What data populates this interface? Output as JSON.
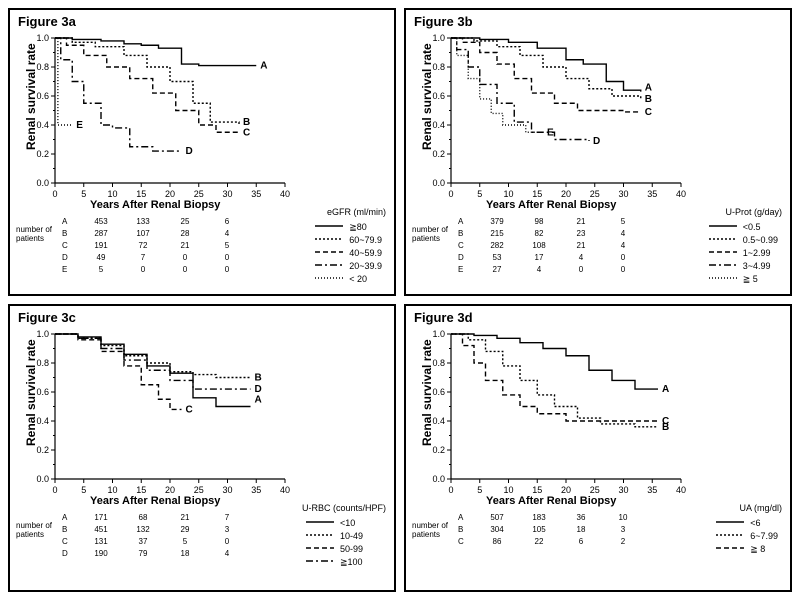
{
  "global": {
    "ylabel": "Renal survival rate",
    "xlabel": "Years After  Renal Biopsy",
    "np_label": "number of\npatients",
    "line_color": "#000000",
    "bg_color": "#ffffff",
    "axis_font_size": 9,
    "label_font_size": 12,
    "ylim": [
      0,
      1.0
    ],
    "xlim": [
      0,
      40
    ],
    "ytick_step": 0.2,
    "xtick_step": 5
  },
  "panels": [
    {
      "title": "Figure 3a",
      "legend_title": "eGFR (ml/min)",
      "series": [
        {
          "id": "A",
          "label": "≧80",
          "dash": "0",
          "pts": [
            [
              0,
              1.0
            ],
            [
              3,
              0.99
            ],
            [
              8,
              0.98
            ],
            [
              12,
              0.96
            ],
            [
              15,
              0.95
            ],
            [
              18,
              0.93
            ],
            [
              22,
              0.82
            ],
            [
              25,
              0.81
            ],
            [
              35,
              0.81
            ]
          ],
          "end_label_y": 0.81
        },
        {
          "id": "B",
          "label": "60~79.9",
          "dash": "2,2",
          "pts": [
            [
              0,
              1.0
            ],
            [
              3,
              0.97
            ],
            [
              7,
              0.94
            ],
            [
              12,
              0.88
            ],
            [
              16,
              0.8
            ],
            [
              20,
              0.7
            ],
            [
              24,
              0.55
            ],
            [
              27,
              0.42
            ],
            [
              32,
              0.4
            ]
          ],
          "end_label_y": 0.42
        },
        {
          "id": "C",
          "label": "40~59.9",
          "dash": "5,3",
          "pts": [
            [
              0,
              1.0
            ],
            [
              2,
              0.95
            ],
            [
              5,
              0.88
            ],
            [
              9,
              0.8
            ],
            [
              13,
              0.72
            ],
            [
              17,
              0.62
            ],
            [
              21,
              0.5
            ],
            [
              25,
              0.4
            ],
            [
              28,
              0.35
            ],
            [
              32,
              0.35
            ]
          ],
          "end_label_y": 0.35
        },
        {
          "id": "D",
          "label": "20~39.9",
          "dash": "7,3,2,3",
          "pts": [
            [
              0,
              1.0
            ],
            [
              1,
              0.85
            ],
            [
              3,
              0.7
            ],
            [
              5,
              0.55
            ],
            [
              8,
              0.4
            ],
            [
              10,
              0.38
            ],
            [
              13,
              0.25
            ],
            [
              17,
              0.22
            ],
            [
              22,
              0.22
            ]
          ],
          "end_label_y": 0.22
        },
        {
          "id": "E",
          "label": "< 20",
          "dash": "1,2",
          "pts": [
            [
              0,
              1.0
            ],
            [
              0.5,
              0.4
            ],
            [
              1,
              0.4
            ],
            [
              3,
              0.4
            ]
          ],
          "end_label_y": 0.4,
          "end_label_x": 3
        }
      ],
      "np_cols": [
        0,
        10,
        20,
        30
      ],
      "np_rows": [
        [
          "A",
          453,
          133,
          25,
          6
        ],
        [
          "B",
          287,
          107,
          28,
          4
        ],
        [
          "C",
          191,
          72,
          21,
          5
        ],
        [
          "D",
          49,
          7,
          0,
          0
        ],
        [
          "E",
          5,
          0,
          0,
          0
        ]
      ]
    },
    {
      "title": "Figure 3b",
      "legend_title": "U-Prot (g/day)",
      "series": [
        {
          "id": "A",
          "label": "<0.5",
          "dash": "0",
          "pts": [
            [
              0,
              1.0
            ],
            [
              5,
              0.99
            ],
            [
              10,
              0.97
            ],
            [
              15,
              0.93
            ],
            [
              20,
              0.85
            ],
            [
              23,
              0.82
            ],
            [
              27,
              0.7
            ],
            [
              30,
              0.64
            ],
            [
              33,
              0.63
            ]
          ],
          "end_label_y": 0.66
        },
        {
          "id": "B",
          "label": "0.5~0.99",
          "dash": "2,2",
          "pts": [
            [
              0,
              1.0
            ],
            [
              4,
              0.98
            ],
            [
              8,
              0.94
            ],
            [
              12,
              0.88
            ],
            [
              16,
              0.8
            ],
            [
              20,
              0.72
            ],
            [
              24,
              0.65
            ],
            [
              28,
              0.6
            ],
            [
              33,
              0.58
            ]
          ],
          "end_label_y": 0.58
        },
        {
          "id": "C",
          "label": "1~2.99",
          "dash": "5,3",
          "pts": [
            [
              0,
              1.0
            ],
            [
              2,
              0.97
            ],
            [
              5,
              0.9
            ],
            [
              8,
              0.82
            ],
            [
              11,
              0.72
            ],
            [
              14,
              0.62
            ],
            [
              18,
              0.55
            ],
            [
              22,
              0.5
            ],
            [
              30,
              0.49
            ],
            [
              33,
              0.49
            ]
          ],
          "end_label_y": 0.49
        },
        {
          "id": "D",
          "label": "3~4.99",
          "dash": "7,3,2,3",
          "pts": [
            [
              0,
              1.0
            ],
            [
              1,
              0.92
            ],
            [
              3,
              0.8
            ],
            [
              5,
              0.68
            ],
            [
              8,
              0.55
            ],
            [
              11,
              0.42
            ],
            [
              14,
              0.35
            ],
            [
              18,
              0.3
            ],
            [
              24,
              0.29
            ]
          ],
          "end_label_y": 0.29
        },
        {
          "id": "E",
          "label": "≧ 5",
          "dash": "1,2",
          "pts": [
            [
              0,
              1.0
            ],
            [
              1,
              0.88
            ],
            [
              3,
              0.72
            ],
            [
              5,
              0.58
            ],
            [
              7,
              0.48
            ],
            [
              9,
              0.4
            ],
            [
              13,
              0.35
            ],
            [
              16,
              0.35
            ]
          ],
          "end_label_y": 0.35,
          "end_label_x": 16
        }
      ],
      "np_cols": [
        0,
        10,
        20,
        30
      ],
      "np_rows": [
        [
          "A",
          379,
          98,
          21,
          5
        ],
        [
          "B",
          215,
          82,
          23,
          4
        ],
        [
          "C",
          282,
          108,
          21,
          4
        ],
        [
          "D",
          53,
          17,
          4,
          0
        ],
        [
          "E",
          27,
          4,
          0,
          0
        ]
      ]
    },
    {
      "title": "Figure 3c",
      "legend_title": "U-RBC (counts/HPF)",
      "series": [
        {
          "id": "A",
          "label": "<10",
          "dash": "0",
          "pts": [
            [
              0,
              1.0
            ],
            [
              4,
              0.98
            ],
            [
              8,
              0.93
            ],
            [
              12,
              0.86
            ],
            [
              16,
              0.78
            ],
            [
              20,
              0.73
            ],
            [
              24,
              0.56
            ],
            [
              28,
              0.5
            ],
            [
              34,
              0.5
            ]
          ],
          "end_label_y": 0.55
        },
        {
          "id": "B",
          "label": "10-49",
          "dash": "2,2",
          "pts": [
            [
              0,
              1.0
            ],
            [
              4,
              0.97
            ],
            [
              8,
              0.92
            ],
            [
              12,
              0.85
            ],
            [
              16,
              0.8
            ],
            [
              20,
              0.74
            ],
            [
              24,
              0.72
            ],
            [
              28,
              0.7
            ],
            [
              34,
              0.7
            ]
          ],
          "end_label_y": 0.7
        },
        {
          "id": "C",
          "label": "50-99",
          "dash": "5,3",
          "pts": [
            [
              0,
              1.0
            ],
            [
              4,
              0.96
            ],
            [
              8,
              0.88
            ],
            [
              12,
              0.78
            ],
            [
              15,
              0.65
            ],
            [
              18,
              0.55
            ],
            [
              20,
              0.48
            ],
            [
              22,
              0.48
            ]
          ],
          "end_label_y": 0.48,
          "end_label_x": 22
        },
        {
          "id": "D",
          "label": "≧100",
          "dash": "7,3,2,3",
          "pts": [
            [
              0,
              1.0
            ],
            [
              4,
              0.97
            ],
            [
              8,
              0.9
            ],
            [
              12,
              0.82
            ],
            [
              16,
              0.75
            ],
            [
              20,
              0.68
            ],
            [
              24,
              0.62
            ],
            [
              34,
              0.62
            ]
          ],
          "end_label_y": 0.62
        }
      ],
      "np_cols": [
        0,
        10,
        20,
        30
      ],
      "np_rows": [
        [
          "A",
          171,
          68,
          21,
          7
        ],
        [
          "B",
          451,
          132,
          29,
          3
        ],
        [
          "C",
          131,
          37,
          5,
          0
        ],
        [
          "D",
          190,
          79,
          18,
          4
        ]
      ]
    },
    {
      "title": "Figure 3d",
      "legend_title": "UA (mg/dl)",
      "series": [
        {
          "id": "A",
          "label": "<6",
          "dash": "0",
          "pts": [
            [
              0,
              1.0
            ],
            [
              4,
              0.99
            ],
            [
              8,
              0.97
            ],
            [
              12,
              0.94
            ],
            [
              16,
              0.9
            ],
            [
              20,
              0.85
            ],
            [
              24,
              0.75
            ],
            [
              28,
              0.68
            ],
            [
              32,
              0.62
            ],
            [
              36,
              0.62
            ]
          ],
          "end_label_y": 0.62
        },
        {
          "id": "B",
          "label": "6~7.99",
          "dash": "2,2",
          "pts": [
            [
              0,
              1.0
            ],
            [
              3,
              0.96
            ],
            [
              6,
              0.88
            ],
            [
              9,
              0.78
            ],
            [
              12,
              0.68
            ],
            [
              15,
              0.58
            ],
            [
              18,
              0.5
            ],
            [
              22,
              0.42
            ],
            [
              26,
              0.38
            ],
            [
              32,
              0.36
            ],
            [
              36,
              0.36
            ]
          ],
          "end_label_y": 0.36
        },
        {
          "id": "C",
          "label": "≧ 8",
          "dash": "5,3",
          "pts": [
            [
              0,
              1.0
            ],
            [
              2,
              0.92
            ],
            [
              4,
              0.8
            ],
            [
              6,
              0.68
            ],
            [
              9,
              0.58
            ],
            [
              12,
              0.5
            ],
            [
              15,
              0.45
            ],
            [
              20,
              0.4
            ],
            [
              30,
              0.4
            ],
            [
              36,
              0.4
            ]
          ],
          "end_label_y": 0.4
        }
      ],
      "np_cols": [
        0,
        10,
        20,
        30
      ],
      "np_rows": [
        [
          "A",
          507,
          183,
          36,
          10
        ],
        [
          "B",
          304,
          105,
          18,
          3
        ],
        [
          "C",
          86,
          22,
          6,
          2
        ]
      ]
    }
  ]
}
